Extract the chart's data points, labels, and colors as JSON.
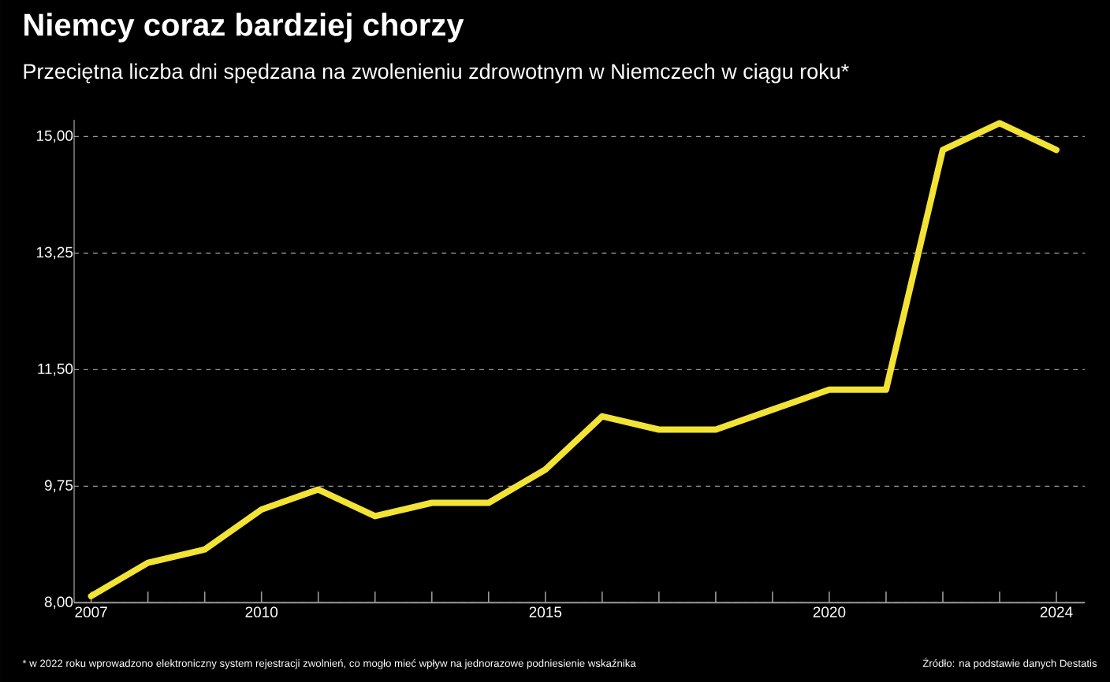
{
  "chart_data": {
    "type": "line",
    "title": "Niemcy coraz bardziej chorzy",
    "subtitle": "Przeciętna liczba dni spędzana na zwolenieniu zdrowotnym w Niemczech w ciągu roku*",
    "x": [
      2007,
      2008,
      2009,
      2010,
      2011,
      2012,
      2013,
      2014,
      2015,
      2016,
      2017,
      2018,
      2019,
      2020,
      2021,
      2022,
      2023,
      2024
    ],
    "series": [
      {
        "color": "#f2e335",
        "values": [
          8.1,
          8.6,
          8.8,
          9.4,
          9.7,
          9.3,
          9.5,
          9.5,
          10.0,
          10.8,
          10.6,
          10.6,
          10.9,
          11.2,
          11.2,
          14.8,
          15.2,
          14.8
        ]
      }
    ],
    "xlim": [
      2006.7,
      2024.5
    ],
    "ylim": [
      8,
      15.25
    ],
    "xticks": [
      2007,
      {
        "value": 2008,
        "label": null
      },
      {
        "value": 2009,
        "label": null
      },
      2010,
      {
        "value": 2011,
        "label": null
      },
      {
        "value": 2012,
        "label": null
      },
      {
        "value": 2013,
        "label": null
      },
      {
        "value": 2014,
        "label": null
      },
      2015,
      {
        "value": 2016,
        "label": null
      },
      {
        "value": 2017,
        "label": null
      },
      {
        "value": 2018,
        "label": null
      },
      {
        "value": 2019,
        "label": null
      },
      2020,
      {
        "value": 2021,
        "label": null
      },
      {
        "value": 2022,
        "label": null
      },
      {
        "value": 2023,
        "label": null
      },
      2024
    ],
    "yticks": [
      {
        "value": 8,
        "label": "8,00"
      },
      {
        "value": 9.75,
        "label": "9,75"
      },
      {
        "value": 11.5,
        "label": "11,50"
      },
      {
        "value": 13.25,
        "label": "13,25"
      },
      {
        "value": 15,
        "label": "15,00"
      }
    ],
    "grid": "y",
    "marker": "none",
    "line_style": "solid",
    "annotations": [
      "* w 2022 roku wprowadzono elektroniczny system rejestracji zwolnień, co mogło mieć wpływ na jednorazowe podniesienie wskaźnika",
      "Źródło: na podstawie danych Destatis"
    ]
  }
}
